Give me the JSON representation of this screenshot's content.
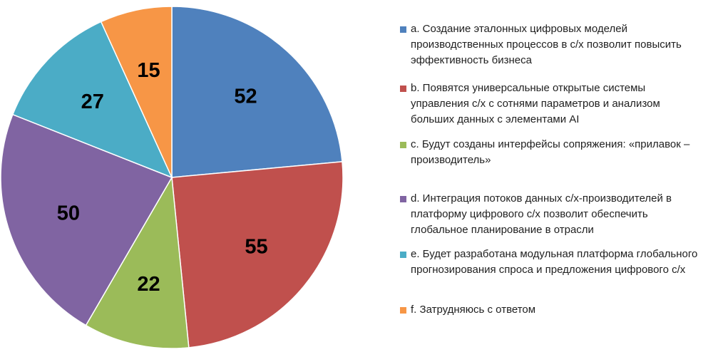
{
  "chart_data": {
    "type": "pie",
    "categories": [
      "a",
      "b",
      "c",
      "d",
      "e",
      "f"
    ],
    "values": [
      52,
      55,
      22,
      50,
      27,
      15
    ],
    "colors": [
      "#4f81bd",
      "#c0504d",
      "#9bbb59",
      "#8064a2",
      "#4bacc6",
      "#f79646"
    ],
    "start_angle_deg": 0,
    "direction": "clockwise",
    "legend_position": "right",
    "legend": [
      "a. Создание эталонных цифровых моделей производственных процессов в с/х позволит повысить эффективность бизнеса",
      "b. Появятся универсальные открытые системы управления с/х с сотнями параметров и анализом больших данных с элементами AI",
      "c. Будут созданы интерфейсы сопряжения: «прилавок – производитель»",
      "d. Интеграция потоков данных с/х-производителей в платформу цифрового с/х позволит обеспечить глобальное планирование в отрасли",
      "e. Будет разработана модульная платформа глобального прогнозирования спроса и предложения цифрового с/х",
      "f. Затрудняюсь с ответом"
    ]
  }
}
